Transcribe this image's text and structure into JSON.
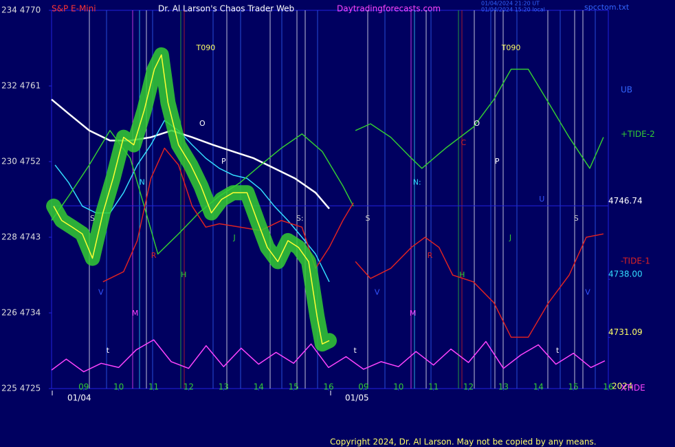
{
  "chart_data": {
    "type": "line",
    "symbol": "S&P E-Mini",
    "title": "Dr. Al Larson's Chaos Trader Web",
    "website": "Daytradingforecasts.com",
    "timestamps": [
      "01/04/2024 21:20 UT",
      "01/04/2024 15:20 local"
    ],
    "file": "spcctom.txt",
    "date_labels": [
      "01/04",
      "01/05"
    ],
    "year": "2024",
    "band_label": "UB",
    "copyright": "Copyright 2024, Dr. Al Larson. May not be copied by any means.",
    "xlim": [
      8.08,
      24.0
    ],
    "xticks": [
      {
        "value": 9,
        "label": "09"
      },
      10,
      11,
      12,
      13,
      14,
      15,
      16,
      {
        "value": 17,
        "label": "09"
      },
      {
        "value": 18,
        "label": "10"
      },
      {
        "value": 19,
        "label": "11"
      },
      {
        "value": 20,
        "label": "12"
      },
      {
        "value": 21,
        "label": "13"
      },
      {
        "value": 22,
        "label": "14"
      },
      {
        "value": 23,
        "label": "15"
      },
      {
        "value": 24,
        "label": "16"
      }
    ],
    "ylim": [
      4725,
      4770
    ],
    "yticks": [
      {
        "value": 4725,
        "label": "225 4725"
      },
      {
        "value": 4734,
        "label": "226 4734"
      },
      {
        "value": 4743,
        "label": "228 4743"
      },
      {
        "value": 4752,
        "label": "230 4752"
      },
      {
        "value": 4761,
        "label": "232 4761"
      },
      {
        "value": 4770,
        "label": "234 4770"
      }
    ],
    "levels": [
      {
        "value": 4746.74,
        "label": "4746.74"
      },
      {
        "value": 4738.0,
        "label": "4738.00"
      },
      {
        "value": 4731.09,
        "label": "4731.09"
      }
    ],
    "series": [
      {
        "color": "#ffffff",
        "x": [
          8.08,
          8.57,
          9.16,
          9.75,
          10.33,
          10.92,
          11.51,
          12.1,
          12.69,
          13.27,
          13.86,
          14.45,
          15.04,
          15.63,
          16.02
        ],
        "values": [
          4759.4,
          4757.7,
          4755.7,
          4754.5,
          4754.5,
          4754.9,
          4755.7,
          4754.9,
          4754.0,
          4753.2,
          4752.4,
          4751.2,
          4750.0,
          4748.3,
          4746.4
        ]
      },
      {
        "color": "#33ddff",
        "x": [
          8.18,
          8.57,
          8.96,
          9.35,
          9.75,
          10.14,
          10.53,
          10.92,
          11.31,
          11.71,
          12.1,
          12.49,
          12.88,
          13.27,
          13.67,
          14.06,
          14.45,
          14.84,
          15.24,
          15.63,
          16.02
        ],
        "values": [
          4751.6,
          4749.5,
          4746.7,
          4745.9,
          4745.9,
          4748.3,
          4751.6,
          4754.0,
          4756.9,
          4755.7,
          4754.0,
          4752.4,
          4751.2,
          4750.4,
          4750.0,
          4748.7,
          4746.7,
          4745.0,
          4743.0,
          4741.0,
          4737.7
        ]
      },
      {
        "name": "+TIDE-2",
        "color": "#33cc33",
        "x": [
          8.08,
          8.57,
          9.16,
          9.75,
          10.33,
          10.73,
          11.12,
          11.71,
          12.29,
          12.88,
          13.47,
          14.06,
          14.65,
          15.24,
          15.82,
          16.41,
          16.71,
          16.74,
          16.77,
          17.2,
          17.78,
          18.37,
          18.67,
          19.35,
          20.14,
          20.73,
          21.22,
          21.71,
          22.29,
          22.88,
          23.47,
          23.86
        ],
        "values": [
          4745.0,
          4747.9,
          4751.6,
          4755.7,
          4752.4,
          4746.7,
          4741.0,
          4743.4,
          4745.9,
          4747.9,
          4749.5,
          4751.6,
          4753.6,
          4755.3,
          4753.2,
          4749.1,
          4746.7,
          null,
          4755.7,
          4756.5,
          4754.9,
          4752.4,
          4751.2,
          4753.6,
          4756.1,
          4759.4,
          4763.0,
          4763.0,
          4759.0,
          4754.9,
          4751.2,
          4754.9
        ]
      },
      {
        "name": "-TIDE-1",
        "color": "#dd2222",
        "x": [
          9.55,
          10.14,
          10.53,
          10.92,
          11.31,
          11.71,
          12.1,
          12.49,
          12.88,
          13.47,
          14.06,
          14.65,
          15.24,
          15.63,
          16.02,
          16.41,
          16.71,
          16.74,
          16.77,
          17.2,
          17.78,
          18.37,
          18.76,
          19.16,
          19.55,
          20.14,
          20.73,
          21.22,
          21.71,
          22.29,
          22.88,
          23.37,
          23.86
        ],
        "values": [
          4737.7,
          4738.9,
          4742.6,
          4750.0,
          4753.6,
          4751.6,
          4746.7,
          4744.2,
          4744.6,
          4744.2,
          4743.8,
          4745.0,
          4744.2,
          4739.3,
          4741.8,
          4745.0,
          4747.1,
          null,
          4740.1,
          4738.1,
          4739.3,
          4741.8,
          4743.0,
          4741.8,
          4738.5,
          4737.7,
          4735.2,
          4731.1,
          4731.1,
          4735.2,
          4738.5,
          4743.0,
          4743.4
        ]
      },
      {
        "name": "XTIDE",
        "color": "#ff44ff",
        "x": [
          8.08,
          8.5,
          9.0,
          9.5,
          10.0,
          10.5,
          11.0,
          11.5,
          12.0,
          12.5,
          13.0,
          13.5,
          14.0,
          14.5,
          15.0,
          15.5,
          16.0,
          16.5,
          17.0,
          17.5,
          18.0,
          18.5,
          19.0,
          19.5,
          20.0,
          20.5,
          21.0,
          21.5,
          22.0,
          22.5,
          23.0,
          23.5,
          23.9
        ],
        "values": [
          4727.2,
          4728.5,
          4727.0,
          4728.0,
          4727.5,
          4729.6,
          4730.8,
          4728.2,
          4727.4,
          4730.1,
          4727.6,
          4729.8,
          4727.9,
          4729.3,
          4728.0,
          4730.3,
          4727.5,
          4728.8,
          4727.3,
          4728.2,
          4727.6,
          4729.4,
          4727.8,
          4729.7,
          4728.1,
          4730.6,
          4727.4,
          4729.0,
          4730.2,
          4727.9,
          4729.2,
          4727.5,
          4728.3
        ]
      },
      {
        "color": "#ffff33",
        "x": [
          8.14,
          8.37,
          8.67,
          8.96,
          9.25,
          9.55,
          9.84,
          10.14,
          10.43,
          10.73,
          11.02,
          11.22,
          11.41,
          11.71,
          12.06,
          12.35,
          12.65,
          12.94,
          13.27,
          13.67,
          13.96,
          14.25,
          14.55,
          14.84,
          15.14,
          15.43,
          15.67,
          15.82,
          16.02
        ],
        "values": [
          4746.7,
          4745.0,
          4744.2,
          4743.4,
          4740.5,
          4745.9,
          4750.0,
          4754.9,
          4754.0,
          4758.1,
          4763.0,
          4764.7,
          4759.0,
          4754.0,
          4751.6,
          4749.1,
          4745.9,
          4747.5,
          4748.3,
          4748.3,
          4745.0,
          4741.8,
          4740.1,
          4742.6,
          4741.8,
          4740.1,
          4733.6,
          4730.3,
          4730.7
        ]
      }
    ],
    "annotations": [
      {
        "text": "T090",
        "x": 12.49,
        "y": 4765.5,
        "color": "#ffff66"
      },
      {
        "text": "T090",
        "x": 21.22,
        "y": 4765.5,
        "color": "#ffff66"
      },
      {
        "text": "O",
        "x": 12.39,
        "y": 4756.5,
        "color": "#ffffff"
      },
      {
        "text": "O",
        "x": 20.24,
        "y": 4756.5,
        "color": "#ffffff"
      },
      {
        "text": "P",
        "x": 13.0,
        "y": 4752.0,
        "color": "#ffffff"
      },
      {
        "text": "P",
        "x": 20.82,
        "y": 4752.0,
        "color": "#ffffff"
      },
      {
        "text": "C",
        "x": 19.86,
        "y": 4754.2,
        "color": "#dd2222"
      },
      {
        "text": "N",
        "x": 10.67,
        "y": 4749.5,
        "color": "#33ddff"
      },
      {
        "text": "N:",
        "x": 18.53,
        "y": 4749.5,
        "color": "#33ddff"
      },
      {
        "text": "S",
        "x": 9.25,
        "y": 4745.2,
        "color": "#cccccc"
      },
      {
        "text": "S:",
        "x": 15.18,
        "y": 4745.2,
        "color": "#cccccc"
      },
      {
        "text": "S",
        "x": 17.12,
        "y": 4745.2,
        "color": "#cccccc"
      },
      {
        "text": "S",
        "x": 23.08,
        "y": 4745.2,
        "color": "#cccccc"
      },
      {
        "text": "R",
        "x": 11.0,
        "y": 4740.8,
        "color": "#dd2222"
      },
      {
        "text": "R",
        "x": 18.9,
        "y": 4740.8,
        "color": "#dd2222"
      },
      {
        "text": "H",
        "x": 11.86,
        "y": 4738.5,
        "color": "#33cc33"
      },
      {
        "text": "H",
        "x": 19.82,
        "y": 4738.5,
        "color": "#33cc33"
      },
      {
        "text": "J",
        "x": 13.31,
        "y": 4742.9,
        "color": "#33cc33"
      },
      {
        "text": "J",
        "x": 21.2,
        "y": 4742.9,
        "color": "#33cc33"
      },
      {
        "text": "M",
        "x": 10.47,
        "y": 4733.9,
        "color": "#ff44ff"
      },
      {
        "text": "M",
        "x": 18.41,
        "y": 4733.9,
        "color": "#ff44ff"
      },
      {
        "text": "V",
        "x": 9.49,
        "y": 4736.4,
        "color": "#3355ff"
      },
      {
        "text": "V",
        "x": 17.39,
        "y": 4736.4,
        "color": "#3355ff"
      },
      {
        "text": "V",
        "x": 23.41,
        "y": 4736.4,
        "color": "#3355ff"
      },
      {
        "text": "U",
        "x": 22.1,
        "y": 4747.5,
        "color": "#3355ff"
      },
      {
        "text": "t",
        "x": 9.69,
        "y": 4729.5,
        "color": "#ffffff"
      },
      {
        "text": "t",
        "x": 16.76,
        "y": 4729.5,
        "color": "#ffffff"
      },
      {
        "text": "t",
        "x": 22.55,
        "y": 4729.5,
        "color": "#ffffff"
      }
    ]
  }
}
